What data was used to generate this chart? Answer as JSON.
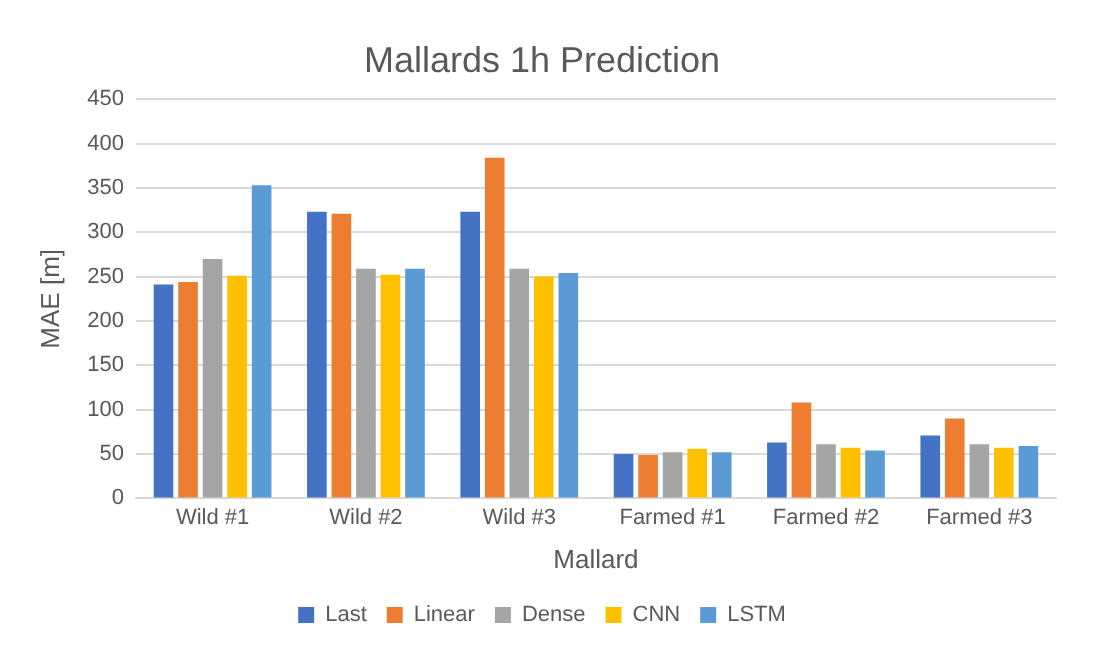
{
  "chart_data": {
    "type": "bar",
    "title": "Mallards 1h Prediction",
    "xlabel": "Mallard",
    "ylabel": "MAE [m]",
    "categories": [
      "Wild #1",
      "Wild #2",
      "Wild #3",
      "Farmed #1",
      "Farmed #2",
      "Farmed #3"
    ],
    "series": [
      {
        "name": "Last",
        "color": "#4472c4",
        "values": [
          241,
          323,
          323,
          50,
          63,
          71
        ]
      },
      {
        "name": "Linear",
        "color": "#ed7d31",
        "values": [
          244,
          321,
          384,
          49,
          108,
          90
        ]
      },
      {
        "name": "Dense",
        "color": "#a5a5a5",
        "values": [
          270,
          259,
          259,
          52,
          61,
          61
        ]
      },
      {
        "name": "CNN",
        "color": "#ffc000",
        "values": [
          251,
          252,
          250,
          56,
          57,
          57
        ]
      },
      {
        "name": "LSTM",
        "color": "#5b9bd5",
        "values": [
          353,
          259,
          254,
          52,
          54,
          59
        ]
      }
    ],
    "ylim": [
      0,
      450
    ],
    "yticks": [
      0,
      50,
      100,
      150,
      200,
      250,
      300,
      350,
      400,
      450
    ],
    "grid": "y",
    "legend": "bottom"
  }
}
